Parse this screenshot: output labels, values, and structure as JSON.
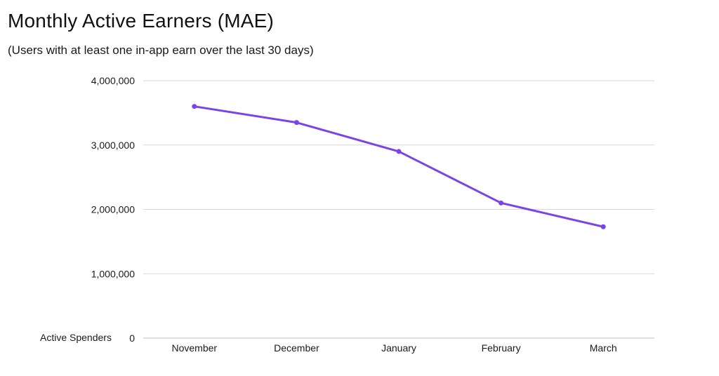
{
  "header": {
    "title": "Monthly Active Earners (MAE)",
    "subtitle": "(Users with at least one in-app earn over the last 30 days)"
  },
  "chart_data": {
    "type": "line",
    "title": "Monthly Active Earners (MAE)",
    "subtitle": "(Users with at least one in-app earn over the last 30 days)",
    "categories": [
      "November",
      "December",
      "January",
      "February",
      "March"
    ],
    "series": [
      {
        "name": "Active Spenders",
        "values": [
          3600000,
          3350000,
          2900000,
          2100000,
          1730000
        ],
        "color": "#7a44e6"
      }
    ],
    "yticks": [
      0,
      1000000,
      2000000,
      3000000,
      4000000
    ],
    "ytick_labels": [
      "0",
      "1,000,000",
      "2,000,000",
      "3,000,000",
      "4,000,000"
    ],
    "ylim": [
      0,
      4000000
    ],
    "grid": true,
    "legend": "bottom-left",
    "colors": {
      "line": "#7a44e6",
      "grid": "#d9d9d9",
      "axis": "#bfbfbf",
      "text": "#1a1a1a"
    }
  }
}
